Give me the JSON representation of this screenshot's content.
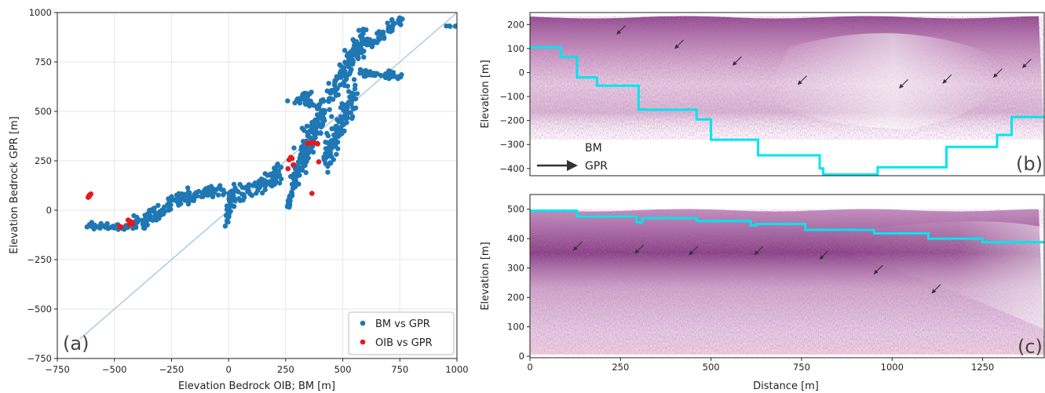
{
  "colors": {
    "bm_vs_gpr": "#1f77b4",
    "oib_vs_gpr": "#e41a1c",
    "identity_line": "#a6c8e0",
    "bm_line": "#00e5ee",
    "gpr_arrow": "#333333",
    "radar_dark": "#6a1a6e",
    "radar_light": "#f2e2ef"
  },
  "chart_data": [
    {
      "type": "scatter",
      "panel_label": "(a)",
      "xlabel": "Elevation Bedrock OIB; BM [m]",
      "ylabel": "Elevation Bedrock GPR [m]",
      "xlim": [
        -750,
        1000
      ],
      "ylim": [
        -750,
        1000
      ],
      "xticks": [
        "−750",
        "−500",
        "−250",
        "0",
        "250",
        "500",
        "750",
        "1000"
      ],
      "xtick_values": [
        -750,
        -500,
        -250,
        0,
        250,
        500,
        750,
        1000
      ],
      "yticks": [
        "−750",
        "−500",
        "−250",
        "0",
        "250",
        "500",
        "750",
        "1000"
      ],
      "ytick_values": [
        -750,
        -500,
        -250,
        0,
        250,
        500,
        750,
        1000
      ],
      "grid": true,
      "identity_line": [
        [
          -650,
          -650
        ],
        [
          1000,
          1000
        ]
      ],
      "legend_position": "lower-right",
      "legend": [
        "BM vs GPR",
        "OIB vs GPR"
      ],
      "series": [
        {
          "name": "BM vs GPR",
          "clusters": [
            {
              "x0": -620,
              "x1": -430,
              "y0": -80,
              "y1": -90,
              "spread": 15,
              "n": 40
            },
            {
              "x0": -430,
              "x1": -250,
              "y0": -90,
              "y1": 30,
              "spread": 45,
              "n": 70
            },
            {
              "x0": -260,
              "x1": -20,
              "y0": 40,
              "y1": 110,
              "spread": 40,
              "n": 80
            },
            {
              "x0": -10,
              "x1": 10,
              "y0": -90,
              "y1": 100,
              "spread": 8,
              "n": 30
            },
            {
              "x0": 10,
              "x1": 230,
              "y0": 50,
              "y1": 190,
              "spread": 45,
              "n": 90
            },
            {
              "x0": 260,
              "x1": 300,
              "y0": 10,
              "y1": 180,
              "spread": 12,
              "n": 30
            },
            {
              "x0": 280,
              "x1": 420,
              "y0": 150,
              "y1": 520,
              "spread": 90,
              "n": 150
            },
            {
              "x0": 420,
              "x1": 560,
              "y0": 250,
              "y1": 600,
              "spread": 90,
              "n": 110
            },
            {
              "x0": 430,
              "x1": 600,
              "y0": 550,
              "y1": 880,
              "spread": 80,
              "n": 100
            },
            {
              "x0": 550,
              "x1": 760,
              "y0": 780,
              "y1": 970,
              "spread": 40,
              "n": 60
            },
            {
              "x0": 260,
              "x1": 430,
              "y0": 560,
              "y1": 530,
              "spread": 25,
              "n": 25
            },
            {
              "x0": 560,
              "x1": 760,
              "y0": 700,
              "y1": 670,
              "spread": 15,
              "n": 40
            },
            {
              "x0": 300,
              "x1": 360,
              "y0": 560,
              "y1": 600,
              "spread": 15,
              "n": 10
            },
            {
              "x0": 700,
              "x1": 730,
              "y0": 700,
              "y1": 690,
              "spread": 12,
              "n": 8
            },
            {
              "x0": 950,
              "x1": 1000,
              "y0": 930,
              "y1": 930,
              "spread": 4,
              "n": 6
            }
          ]
        },
        {
          "name": "OIB vs GPR",
          "points": [
            [
              -615,
              65
            ],
            [
              -612,
              72
            ],
            [
              -608,
              78
            ],
            [
              -603,
              82
            ],
            [
              -610,
              70
            ],
            [
              -478,
              -82
            ],
            [
              -470,
              -85
            ],
            [
              -440,
              -50
            ],
            [
              -432,
              -55
            ],
            [
              -425,
              -60
            ],
            [
              -420,
              -68
            ],
            [
              -435,
              -72
            ],
            [
              260,
              210
            ],
            [
              265,
              255
            ],
            [
              272,
              268
            ],
            [
              278,
              262
            ],
            [
              285,
              230
            ],
            [
              345,
              338
            ],
            [
              360,
              340
            ],
            [
              372,
              342
            ],
            [
              390,
              335
            ],
            [
              395,
              245
            ],
            [
              365,
              85
            ]
          ]
        }
      ]
    },
    {
      "type": "heatmap",
      "panel_label": "(b)",
      "ylabel": "Elevation [m]",
      "xlim": [
        0,
        1420
      ],
      "ylim": [
        -430,
        250
      ],
      "xticks": [],
      "yticks": [
        "200",
        "100",
        "0",
        "−100",
        "−200",
        "−300",
        "−400"
      ],
      "ytick_values": [
        200,
        100,
        0,
        -100,
        -200,
        -300,
        -400
      ],
      "legend": [
        "BM",
        "GPR"
      ],
      "legend_position": "lower-left",
      "bm_steps": [
        [
          0,
          105
        ],
        [
          85,
          105
        ],
        [
          85,
          65
        ],
        [
          130,
          65
        ],
        [
          130,
          -20
        ],
        [
          185,
          -20
        ],
        [
          185,
          -55
        ],
        [
          300,
          -55
        ],
        [
          300,
          -155
        ],
        [
          460,
          -155
        ],
        [
          460,
          -195
        ],
        [
          500,
          -195
        ],
        [
          500,
          -280
        ],
        [
          630,
          -280
        ],
        [
          630,
          -345
        ],
        [
          800,
          -345
        ],
        [
          800,
          -400
        ],
        [
          810,
          -400
        ],
        [
          810,
          -425
        ],
        [
          960,
          -425
        ],
        [
          960,
          -395
        ],
        [
          1150,
          -395
        ],
        [
          1150,
          -310
        ],
        [
          1290,
          -310
        ],
        [
          1290,
          -260
        ],
        [
          1330,
          -260
        ],
        [
          1330,
          -185
        ],
        [
          1420,
          -185
        ]
      ],
      "gpr_arrows": [
        [
          240,
          160
        ],
        [
          400,
          100
        ],
        [
          560,
          30
        ],
        [
          740,
          -50
        ],
        [
          1020,
          -65
        ],
        [
          1140,
          -45
        ],
        [
          1280,
          -20
        ],
        [
          1360,
          20
        ],
        [
          1420,
          0
        ]
      ]
    },
    {
      "type": "heatmap",
      "panel_label": "(c)",
      "xlabel": "Distance [m]",
      "ylabel": "Elevation [m]",
      "xlim": [
        0,
        1420
      ],
      "ylim": [
        -5,
        550
      ],
      "xticks": [
        "0",
        "250",
        "500",
        "750",
        "1000",
        "1250"
      ],
      "xtick_values": [
        0,
        250,
        500,
        750,
        1000,
        1250
      ],
      "yticks": [
        "500",
        "400",
        "300",
        "200",
        "100",
        "0"
      ],
      "ytick_values": [
        500,
        400,
        300,
        200,
        100,
        0
      ],
      "bm_steps": [
        [
          0,
          495
        ],
        [
          130,
          495
        ],
        [
          130,
          475
        ],
        [
          295,
          475
        ],
        [
          295,
          455
        ],
        [
          310,
          455
        ],
        [
          310,
          470
        ],
        [
          460,
          470
        ],
        [
          460,
          460
        ],
        [
          610,
          460
        ],
        [
          610,
          445
        ],
        [
          625,
          445
        ],
        [
          625,
          450
        ],
        [
          760,
          450
        ],
        [
          760,
          430
        ],
        [
          950,
          430
        ],
        [
          950,
          418
        ],
        [
          1100,
          418
        ],
        [
          1100,
          400
        ],
        [
          1250,
          400
        ],
        [
          1250,
          388
        ],
        [
          1420,
          388
        ]
      ],
      "gpr_arrows": [
        [
          120,
          360
        ],
        [
          290,
          350
        ],
        [
          440,
          345
        ],
        [
          620,
          345
        ],
        [
          800,
          330
        ],
        [
          950,
          280
        ],
        [
          1110,
          215
        ]
      ]
    }
  ]
}
